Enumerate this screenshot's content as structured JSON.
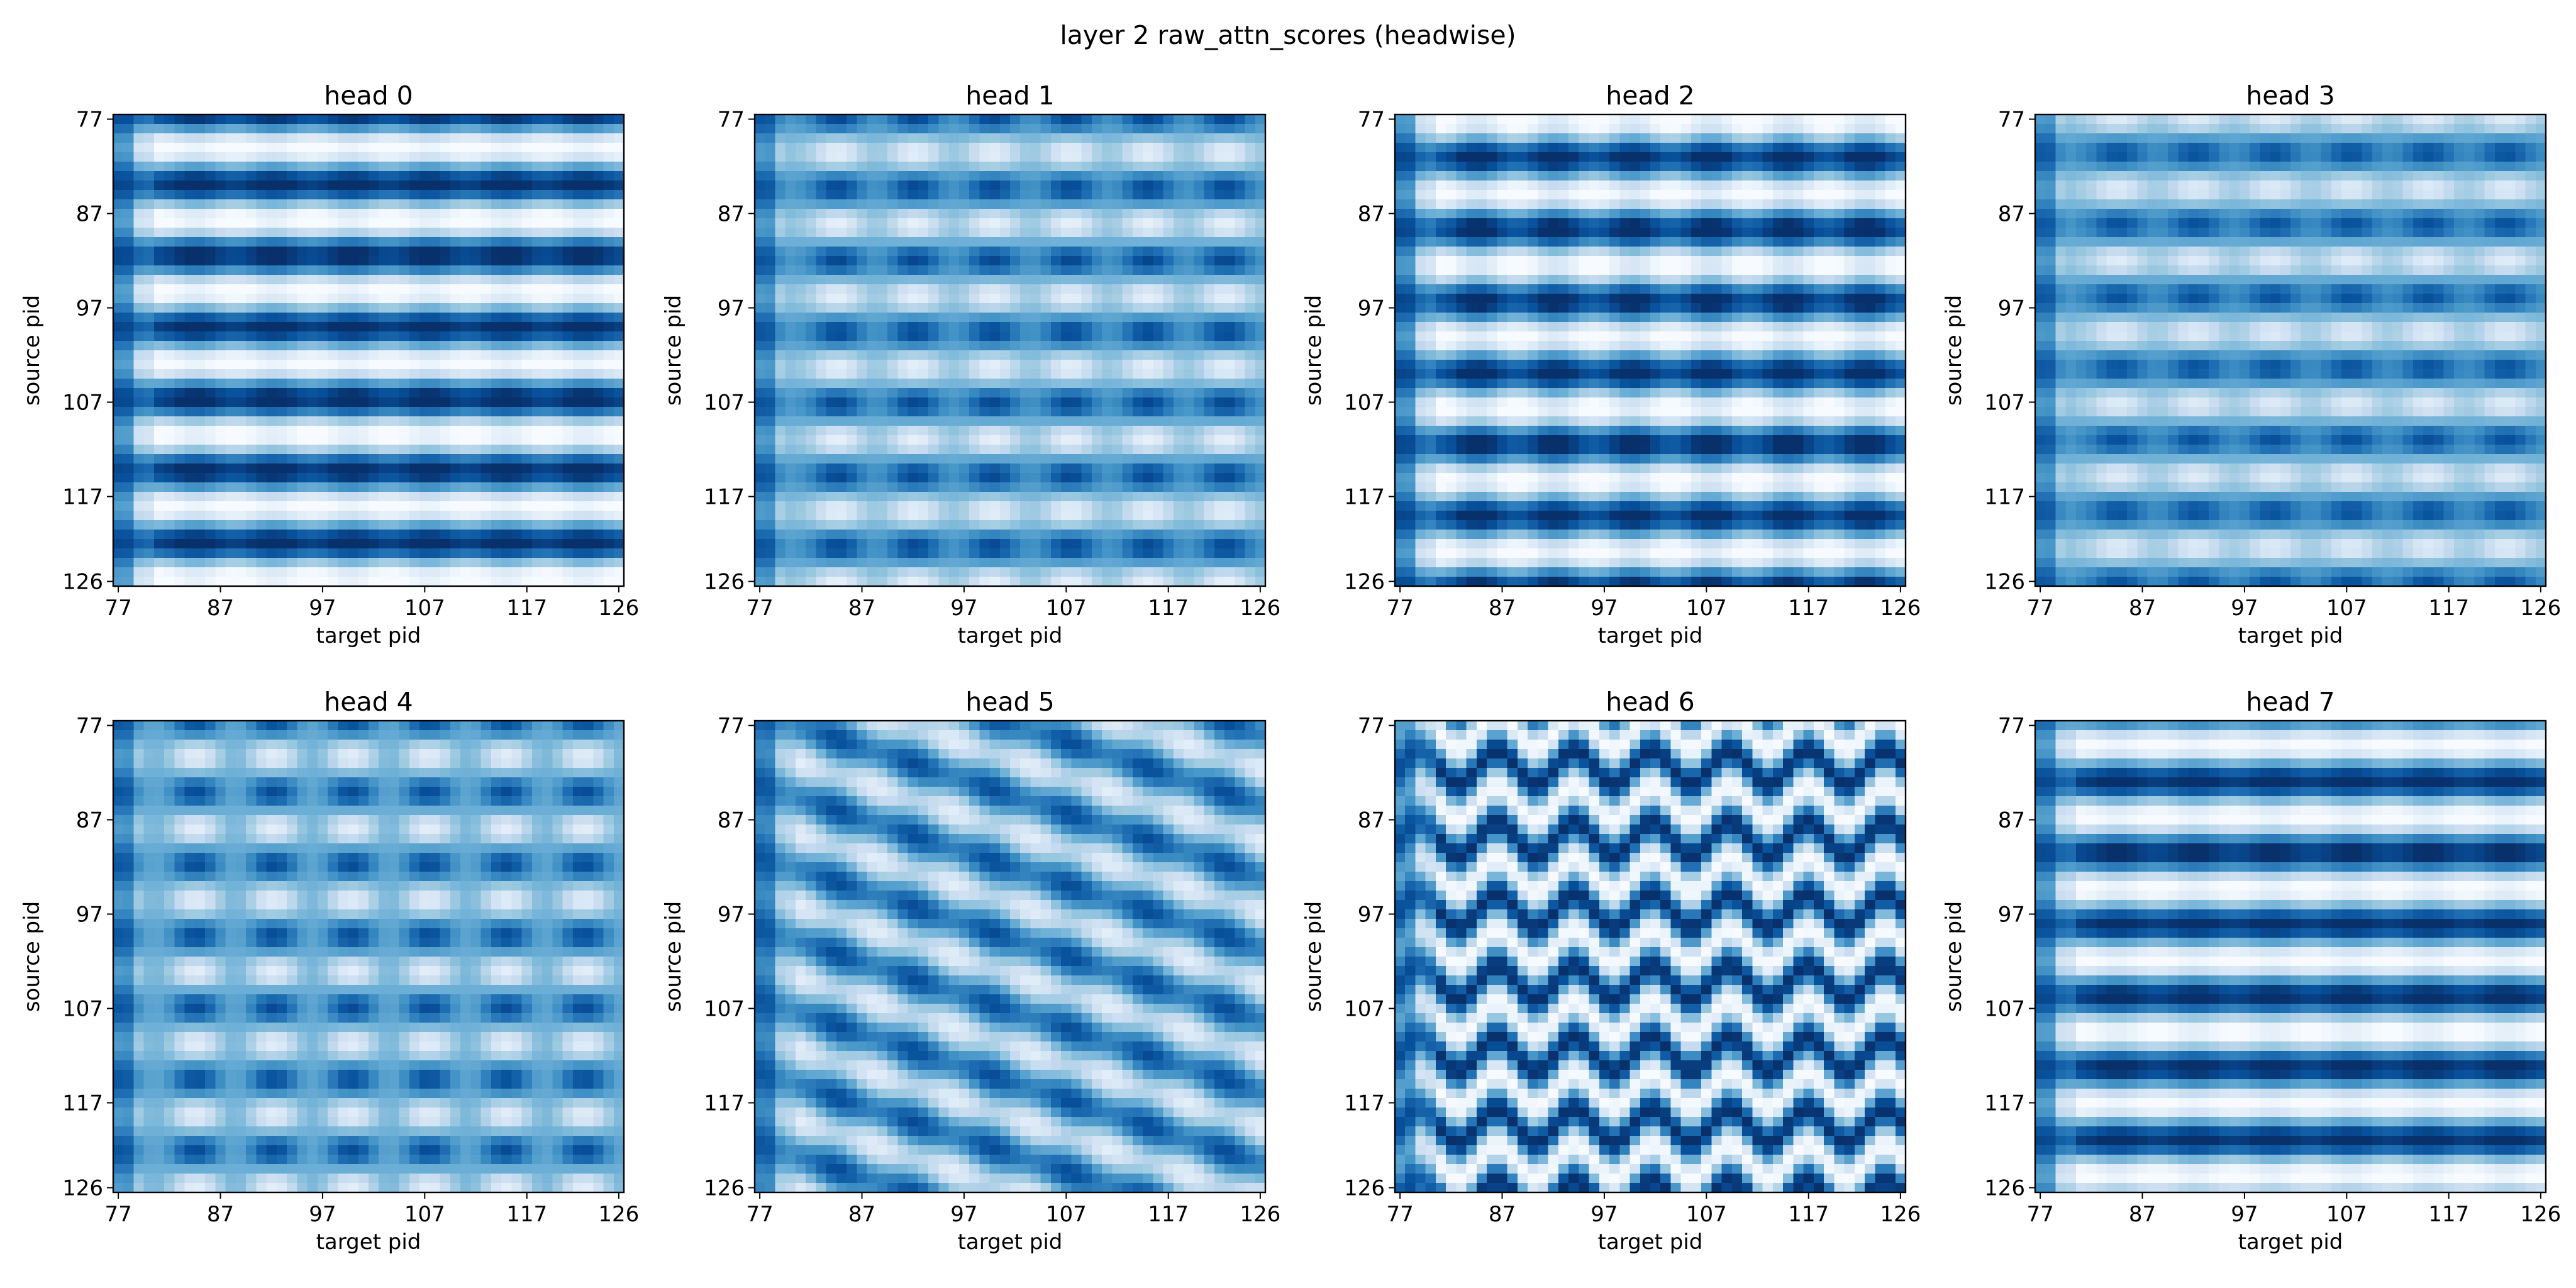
{
  "figure": {
    "title": "layer 2 raw_attn_scores (headwise)"
  },
  "chart_data": {
    "type": "heatmap",
    "colormap": "Blues",
    "grid": false,
    "matrix_size": [
      50,
      50
    ],
    "xlabel": "target pid",
    "ylabel": "source pid",
    "x_ticks": [
      "77",
      "87",
      "97",
      "107",
      "117",
      "126"
    ],
    "y_ticks": [
      "77",
      "87",
      "97",
      "107",
      "117",
      "126"
    ],
    "xlim": [
      77,
      126
    ],
    "ylim": [
      126,
      77
    ],
    "panels": [
      {
        "title": "head 0",
        "pattern": {
          "kind": "bands",
          "period": 7.6,
          "phase": 0.6,
          "tilt": 0.0,
          "wobble": 0.12,
          "strength": 1.0
        }
      },
      {
        "title": "head 1",
        "pattern": {
          "kind": "checker",
          "period": 7.6,
          "phase": 0.2,
          "tilt": 0.0,
          "wobble": 0.45,
          "strength": 0.85
        }
      },
      {
        "title": "head 2",
        "pattern": {
          "kind": "bands",
          "period": 7.6,
          "phase": 2.9,
          "tilt": 0.0,
          "wobble": 0.2,
          "strength": 0.95
        }
      },
      {
        "title": "head 3",
        "pattern": {
          "kind": "checker",
          "period": 7.6,
          "phase": 3.3,
          "tilt": 0.0,
          "wobble": 0.35,
          "strength": 0.85
        }
      },
      {
        "title": "head 4",
        "pattern": {
          "kind": "checker",
          "period": 7.6,
          "phase": 0.4,
          "tilt": 0.0,
          "wobble": 0.55,
          "strength": 0.7
        }
      },
      {
        "title": "head 5",
        "pattern": {
          "kind": "diag",
          "period": 7.6,
          "phase": 1.0,
          "tilt": 0.35,
          "wobble": 0.5,
          "strength": 0.85
        }
      },
      {
        "title": "head 6",
        "pattern": {
          "kind": "wave",
          "period": 7.6,
          "phase": 2.6,
          "tilt": 0.0,
          "wobble": 0.95,
          "strength": 1.0
        }
      },
      {
        "title": "head 7",
        "pattern": {
          "kind": "bands",
          "period": 7.6,
          "phase": 1.4,
          "tilt": 0.0,
          "wobble": 0.1,
          "strength": 1.0
        }
      }
    ]
  }
}
